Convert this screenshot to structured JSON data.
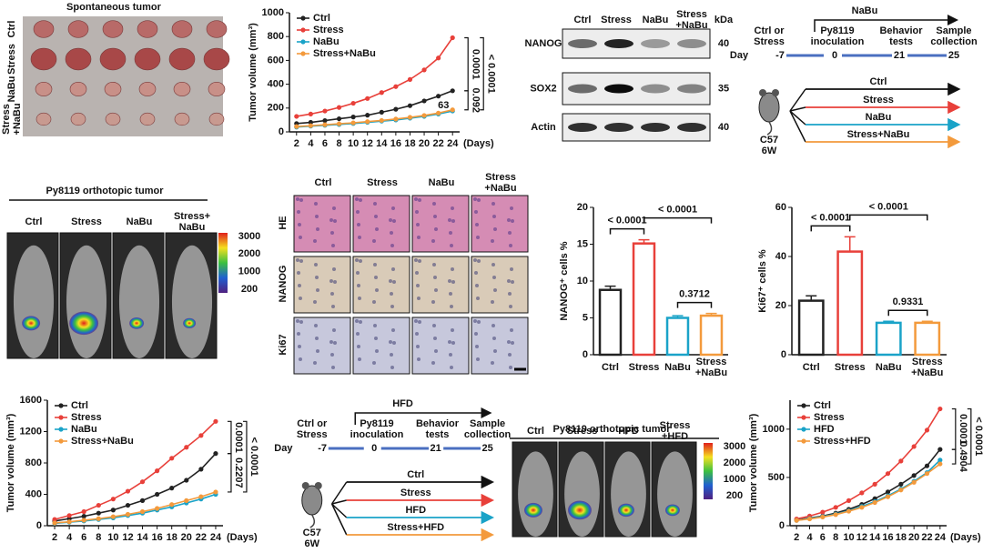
{
  "tumor_photo": {
    "title": "Spontaneous tumor",
    "rows": [
      "Ctrl",
      "Stress",
      "NaBu",
      "Stress\n+NaBu"
    ]
  },
  "western_blot": {
    "columns": [
      "Ctrl",
      "Stress",
      "NaBu",
      "Stress\n+NaBu"
    ],
    "unit": "kDa",
    "bands": [
      {
        "name": "NANOG",
        "kda": "40"
      },
      {
        "name": "SOX2",
        "kda": "35"
      },
      {
        "name": "Actin",
        "kda": "40"
      }
    ]
  },
  "timeline_1": {
    "treatment": "NaBu",
    "events": [
      "Ctrl or\nStress",
      "Py8119\ninoculation",
      "Behavior\ntests",
      "Sample\ncollection"
    ],
    "day_label": "Day",
    "days": [
      "-7",
      "0",
      "21",
      "25"
    ],
    "mouse": "C57\n6W",
    "groups": [
      "Ctrl",
      "Stress",
      "NaBu",
      "Stress+NaBu"
    ]
  },
  "timeline_2": {
    "treatment": "HFD",
    "events": [
      "Ctrl or\nStress",
      "Py8119\ninoculation",
      "Behavior\ntests",
      "Sample\ncollection"
    ],
    "day_label": "Day",
    "days": [
      "-7",
      "0",
      "21",
      "25"
    ],
    "mouse": "C57\n6W",
    "groups": [
      "Ctrl",
      "Stress",
      "HFD",
      "Stress+HFD"
    ]
  },
  "imaging_1": {
    "title": "Py8119 orthotopic tumor",
    "columns": [
      "Ctrl",
      "Stress",
      "NaBu",
      "Stress+\nNaBu"
    ],
    "scale": [
      "3000",
      "2000",
      "1000",
      "200"
    ]
  },
  "imaging_2": {
    "title": "Py8119 orthotopic tumor",
    "columns": [
      "Ctrl",
      "Stress",
      "HFD",
      "Stress\n+HFD"
    ],
    "scale": [
      "3000",
      "2000",
      "1000",
      "200"
    ]
  },
  "ihc": {
    "columns": [
      "Ctrl",
      "Stress",
      "NaBu",
      "Stress\n+NaBu"
    ],
    "rows": [
      "HE",
      "NANOG",
      "Ki67"
    ]
  },
  "chart_data": [
    {
      "type": "line",
      "y_label": "Tumor volume (mm³)",
      "x_label": "(Days)",
      "x": [
        2,
        4,
        6,
        8,
        10,
        12,
        14,
        16,
        18,
        20,
        22,
        24
      ],
      "xlim": [
        1,
        25
      ],
      "xticks": [
        2,
        4,
        6,
        8,
        10,
        12,
        14,
        16,
        18,
        20,
        22,
        24
      ],
      "ylim": [
        0,
        1000
      ],
      "yticks": [
        0,
        200,
        400,
        600,
        800,
        1000
      ],
      "series": [
        {
          "name": "Ctrl",
          "color": "#222222",
          "values": [
            70,
            80,
            95,
            110,
            125,
            140,
            165,
            190,
            220,
            260,
            300,
            345
          ]
        },
        {
          "name": "Stress",
          "color": "#e8403a",
          "values": [
            130,
            150,
            175,
            205,
            240,
            280,
            330,
            380,
            440,
            520,
            620,
            790
          ]
        },
        {
          "name": "NaBu",
          "color": "#1aa3c8",
          "values": [
            40,
            48,
            55,
            62,
            70,
            80,
            90,
            100,
            115,
            130,
            150,
            175
          ]
        },
        {
          "name": "Stress+NaBu",
          "color": "#f39a3c",
          "values": [
            45,
            52,
            60,
            68,
            76,
            86,
            96,
            108,
            122,
            138,
            158,
            185
          ]
        }
      ],
      "annotations": [
        "< 0.0001",
        "0.0001",
        "0.092",
        "63"
      ]
    },
    {
      "type": "bar",
      "y_label": "NANOG⁺ cells %",
      "categories": [
        "Ctrl",
        "Stress",
        "NaBu",
        "Stress\n+NaBu"
      ],
      "values": [
        8.8,
        15.1,
        5.0,
        5.3
      ],
      "errors": [
        0.5,
        0.5,
        0.3,
        0.3
      ],
      "colors": [
        "#222222",
        "#e8403a",
        "#1aa3c8",
        "#f39a3c"
      ],
      "ylim": [
        0,
        20
      ],
      "yticks": [
        0,
        5,
        10,
        15,
        20
      ],
      "annotations": [
        "< 0.0001",
        "< 0.0001",
        "0.3712"
      ]
    },
    {
      "type": "bar",
      "y_label": "Ki67⁺ cells %",
      "categories": [
        "Ctrl",
        "Stress",
        "NaBu",
        "Stress\n+NaBu"
      ],
      "values": [
        22,
        42,
        13,
        13
      ],
      "errors": [
        2,
        6,
        0.6,
        0.6
      ],
      "colors": [
        "#222222",
        "#e8403a",
        "#1aa3c8",
        "#f39a3c"
      ],
      "ylim": [
        0,
        60
      ],
      "yticks": [
        0,
        20,
        40,
        60
      ],
      "annotations": [
        "< 0.0001",
        "< 0.0001",
        "0.9331"
      ]
    },
    {
      "type": "line",
      "y_label": "Tumor volume (mm³)",
      "x_label": "(Days)",
      "x": [
        2,
        4,
        6,
        8,
        10,
        12,
        14,
        16,
        18,
        20,
        22,
        24
      ],
      "xlim": [
        1,
        25
      ],
      "xticks": [
        2,
        4,
        6,
        8,
        10,
        12,
        14,
        16,
        18,
        20,
        22,
        24
      ],
      "ylim": [
        0,
        1600
      ],
      "yticks": [
        0,
        400,
        800,
        1200,
        1600
      ],
      "series": [
        {
          "name": "Ctrl",
          "color": "#222222",
          "values": [
            60,
            90,
            120,
            160,
            200,
            260,
            320,
            400,
            480,
            580,
            720,
            920
          ]
        },
        {
          "name": "Stress",
          "color": "#e8403a",
          "values": [
            80,
            130,
            180,
            260,
            340,
            440,
            560,
            700,
            860,
            1000,
            1150,
            1330
          ]
        },
        {
          "name": "NaBu",
          "color": "#1aa3c8",
          "values": [
            30,
            45,
            60,
            80,
            100,
            130,
            160,
            200,
            240,
            290,
            340,
            400
          ]
        },
        {
          "name": "Stress+NaBu",
          "color": "#f39a3c",
          "values": [
            35,
            50,
            70,
            90,
            115,
            145,
            180,
            220,
            270,
            320,
            370,
            430
          ]
        }
      ],
      "annotations": [
        "< 0.0001",
        "0.0001",
        "0.2207"
      ]
    },
    {
      "type": "line",
      "y_label": "Tumor volume (mm³)",
      "x_label": "(Days)",
      "x": [
        2,
        4,
        6,
        8,
        10,
        12,
        14,
        16,
        18,
        20,
        22,
        24
      ],
      "xlim": [
        1,
        25
      ],
      "xticks": [
        2,
        4,
        6,
        8,
        10,
        12,
        14,
        16,
        18,
        20,
        22,
        24
      ],
      "ylim": [
        0,
        1300
      ],
      "yticks": [
        0,
        500,
        1000
      ],
      "series": [
        {
          "name": "Ctrl",
          "color": "#222222",
          "values": [
            60,
            80,
            100,
            130,
            170,
            220,
            280,
            350,
            430,
            520,
            620,
            790
          ]
        },
        {
          "name": "Stress",
          "color": "#e8403a",
          "values": [
            70,
            100,
            140,
            190,
            260,
            340,
            430,
            540,
            670,
            820,
            990,
            1210
          ]
        },
        {
          "name": "HFD",
          "color": "#1aa3c8",
          "values": [
            55,
            75,
            95,
            120,
            155,
            200,
            250,
            310,
            380,
            460,
            550,
            680
          ]
        },
        {
          "name": "Stress+HFD",
          "color": "#f39a3c",
          "values": [
            55,
            70,
            90,
            115,
            150,
            190,
            240,
            300,
            370,
            450,
            540,
            640
          ]
        }
      ],
      "annotations": [
        "< 0.0001",
        "0.0001",
        "0.4904"
      ]
    }
  ]
}
